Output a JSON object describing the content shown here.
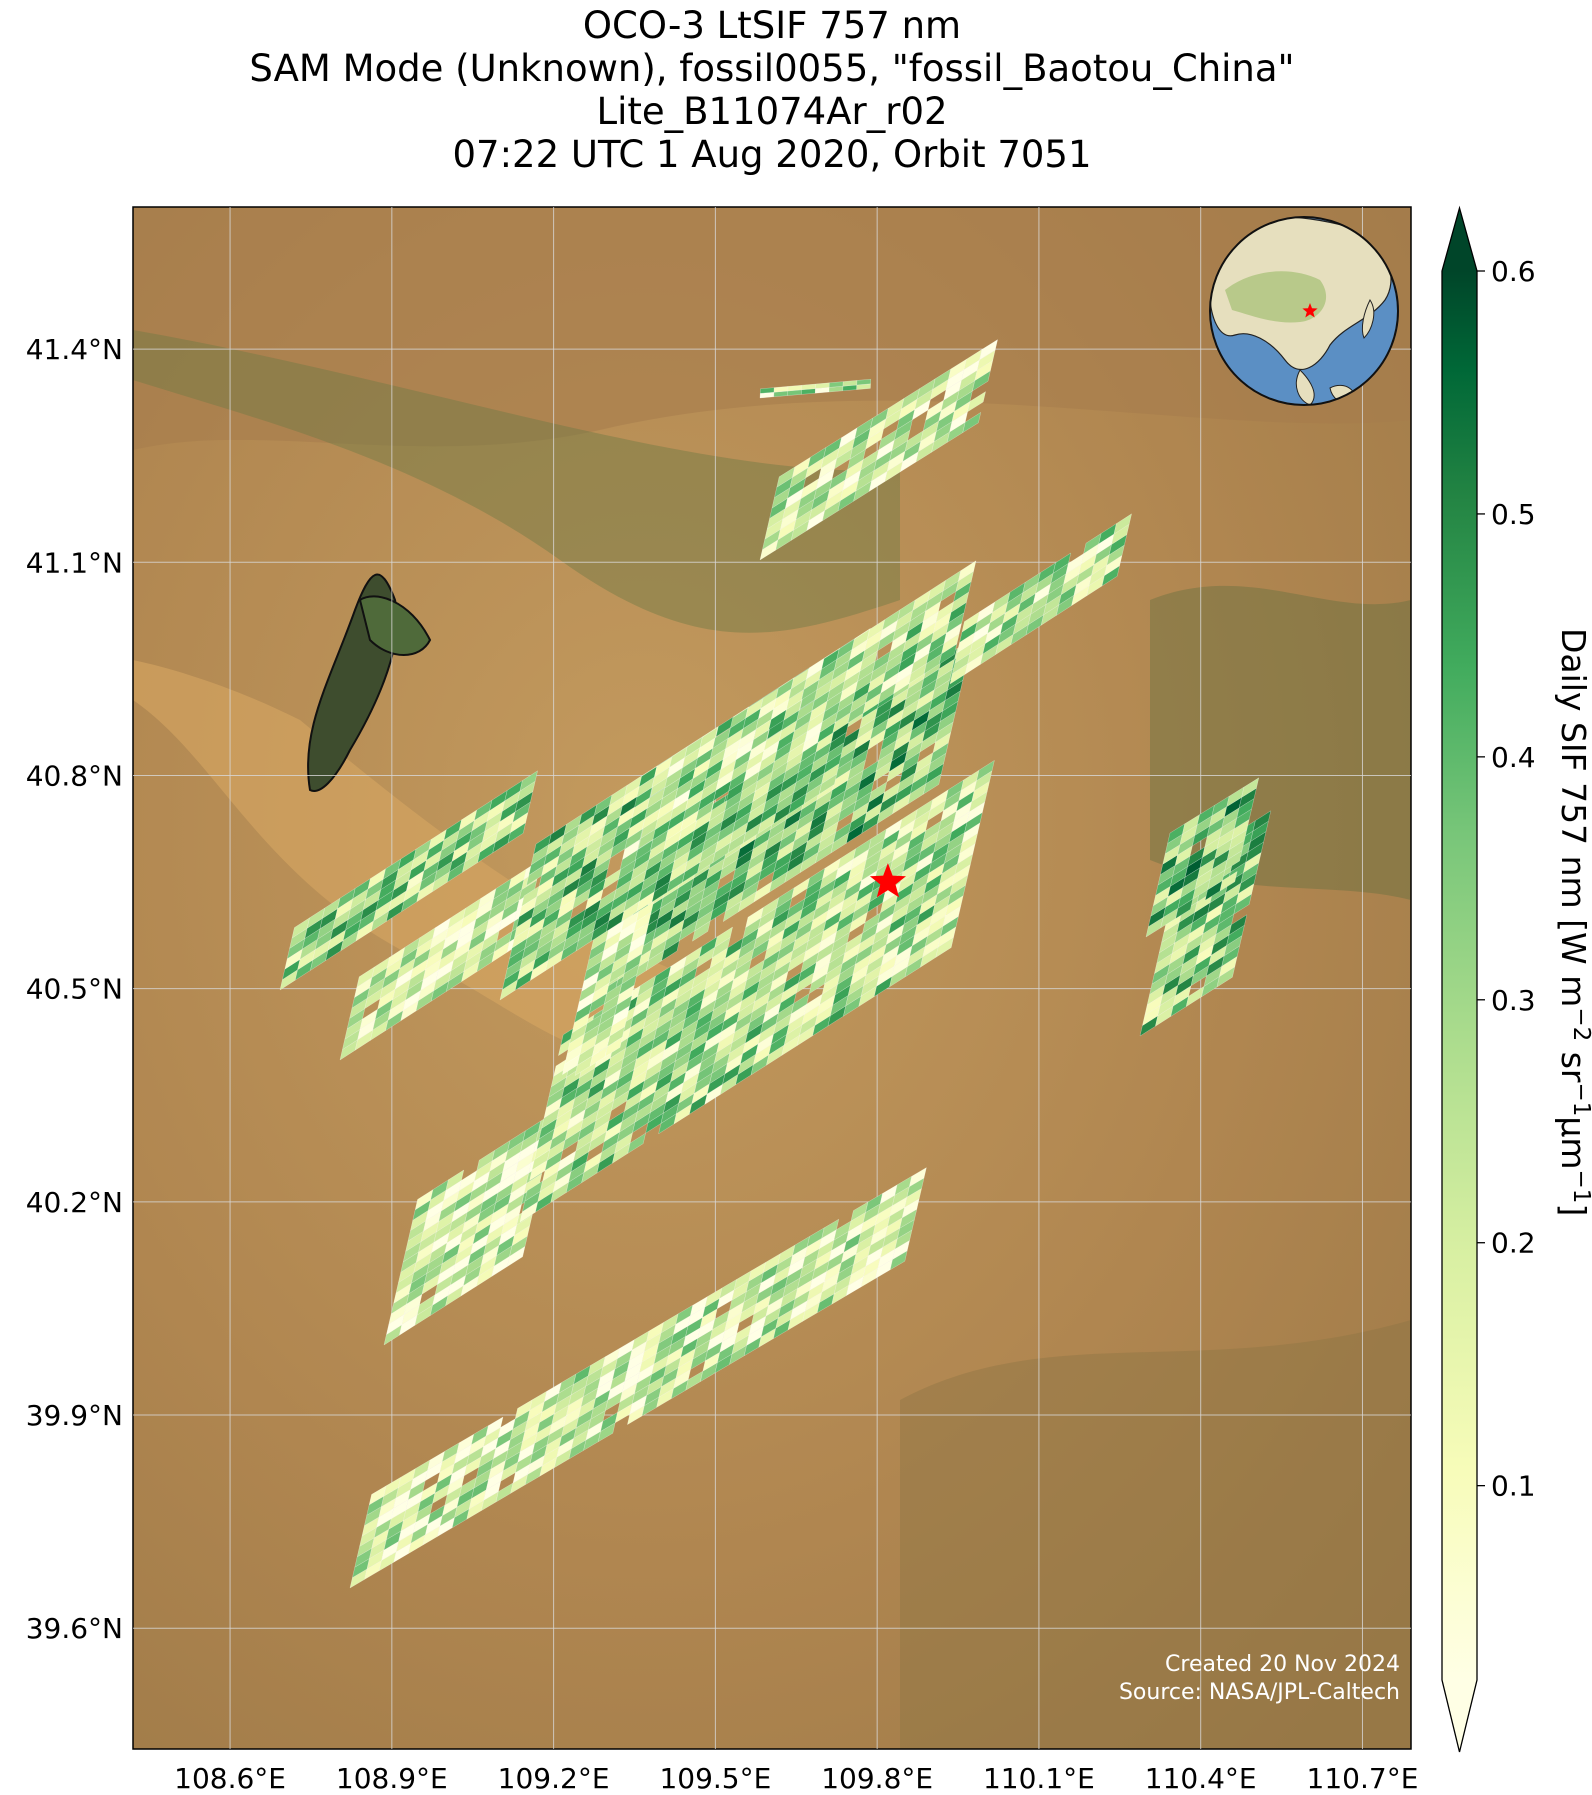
{
  "title": {
    "line1": "OCO-3 LtSIF 757 nm",
    "line2": "SAM Mode (Unknown), fossil0055, \"fossil_Baotou_China\"",
    "line3": "Lite_B11074Ar_r02",
    "line4": "07:22 UTC 1 Aug 2020, Orbit 7051"
  },
  "map": {
    "lon_range": [
      108.42,
      110.79
    ],
    "lat_range": [
      39.43,
      41.6
    ],
    "lon_ticks": [
      "108.6°E",
      "108.9°E",
      "109.2°E",
      "109.5°E",
      "109.8°E",
      "110.1°E",
      "110.4°E",
      "110.7°E"
    ],
    "lat_ticks": [
      "41.4°N",
      "41.1°N",
      "40.8°N",
      "40.5°N",
      "40.2°N",
      "39.9°N",
      "39.6°N"
    ],
    "target_lon": 109.82,
    "target_lat": 40.65,
    "gridlines": true,
    "basemap": "satellite imagery"
  },
  "colorbar": {
    "label_text": "Daily SIF 757 nm [W m",
    "label_sup1": "−2",
    "label_mid": " sr",
    "label_sup2": "−1",
    "label_mid2": "μm",
    "label_sup3": "−1",
    "label_end": "]",
    "ticks": [
      "0.1",
      "0.2",
      "0.3",
      "0.4",
      "0.5",
      "0.6"
    ],
    "tick_values": [
      0.1,
      0.2,
      0.3,
      0.4,
      0.5,
      0.6
    ],
    "range": [
      0.02,
      0.6
    ],
    "colormap": "YlGn",
    "extend": "both"
  },
  "inset": {
    "type": "globe",
    "marker": "red-star"
  },
  "credits": {
    "created": "Created 20 Nov 2024",
    "source": "Source: NASA/JPL-Caltech"
  },
  "colors": {
    "basemap": "#b58c55",
    "target_star": "#ff0000",
    "cmap_low": "#ffffe5",
    "cmap_high": "#004529"
  }
}
